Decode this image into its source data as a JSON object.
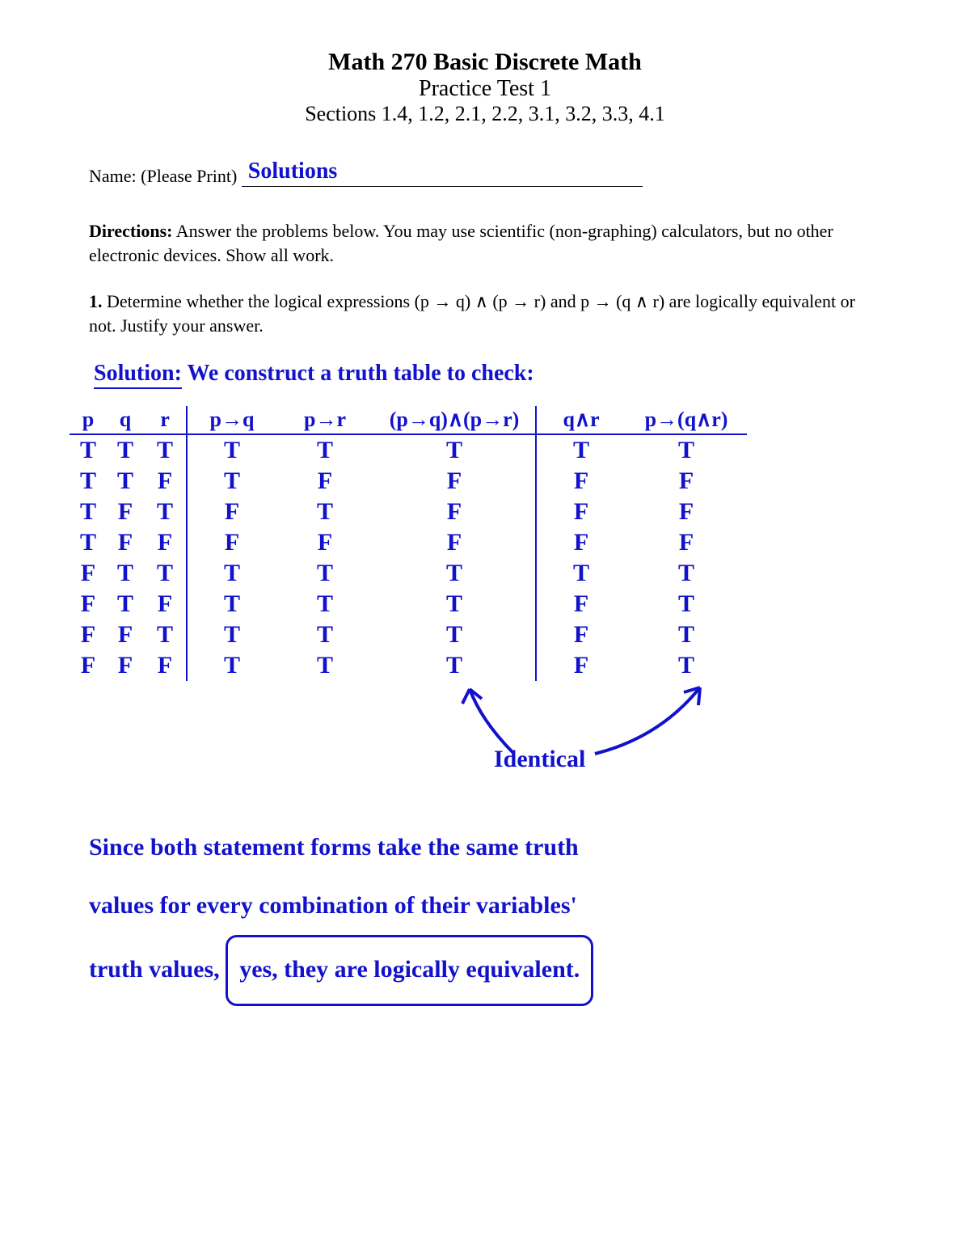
{
  "header": {
    "course_title": "Math 270 Basic Discrete Math",
    "subtitle": "Practice Test 1",
    "sections": "Sections 1.4, 1.2, 2.1, 2.2, 3.1, 3.2, 3.3, 4.1"
  },
  "name_row": {
    "label": "Name: (Please Print)",
    "value": "Solutions"
  },
  "directions": {
    "label": "Directions:",
    "text": "Answer the problems below. You may use scientific (non-graphing) calculators, but no other electronic devices. Show all work."
  },
  "question1": {
    "label": "1.",
    "text_a": "Determine whether the logical expressions (p → q)  ∧  (p → r) and p → (q  ∧  r) are logically equivalent or not. Justify your answer."
  },
  "solution": {
    "heading": "Solution:",
    "intro": "We construct a truth table to check:",
    "truth_table": {
      "headers": [
        "p",
        "q",
        "r",
        "p→q",
        "p→r",
        "(p→q)∧(p→r)",
        "q∧r",
        "p→(q∧r)"
      ],
      "rows": [
        [
          "T",
          "T",
          "T",
          "T",
          "T",
          "T",
          "T",
          "T"
        ],
        [
          "T",
          "T",
          "F",
          "T",
          "F",
          "F",
          "F",
          "F"
        ],
        [
          "T",
          "F",
          "T",
          "F",
          "T",
          "F",
          "F",
          "F"
        ],
        [
          "T",
          "F",
          "F",
          "F",
          "F",
          "F",
          "F",
          "F"
        ],
        [
          "F",
          "T",
          "T",
          "T",
          "T",
          "T",
          "T",
          "T"
        ],
        [
          "F",
          "T",
          "F",
          "T",
          "T",
          "T",
          "F",
          "T"
        ],
        [
          "F",
          "F",
          "T",
          "T",
          "T",
          "T",
          "F",
          "T"
        ],
        [
          "F",
          "F",
          "F",
          "T",
          "T",
          "T",
          "F",
          "T"
        ]
      ],
      "column_separators_after_index": [
        2,
        5
      ],
      "identical_label": "Identical"
    },
    "conclusion_a": "Since both statement forms take the same truth",
    "conclusion_b": "values for every combination of their variables'",
    "conclusion_c": "truth values,",
    "conclusion_boxed": "yes, they are logically equivalent."
  },
  "colors": {
    "ink": "#1212cc",
    "text": "#000000",
    "background": "#ffffff"
  }
}
